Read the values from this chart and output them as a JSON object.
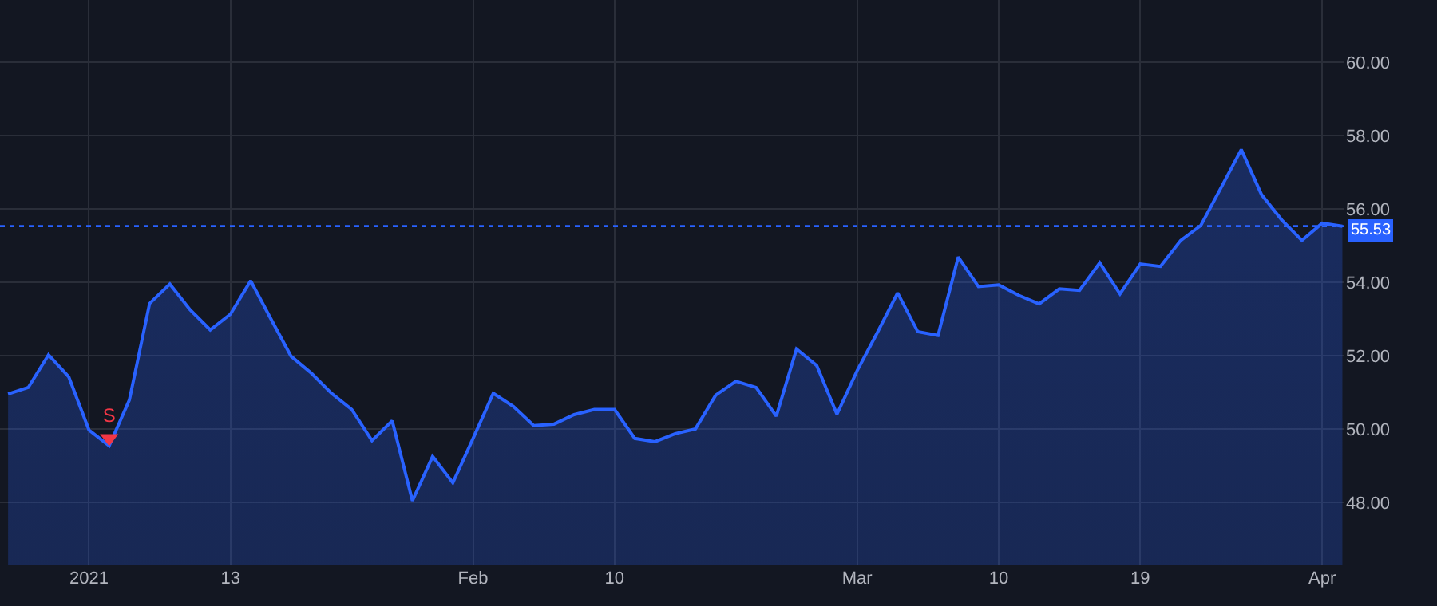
{
  "chart_data": {
    "type": "area",
    "categories": [
      null,
      null,
      null,
      null,
      "2021",
      null,
      null,
      null,
      null,
      null,
      null,
      "13",
      null,
      null,
      null,
      null,
      null,
      null,
      null,
      null,
      null,
      null,
      null,
      "Feb",
      null,
      null,
      null,
      null,
      null,
      null,
      "10",
      null,
      null,
      null,
      null,
      null,
      null,
      null,
      null,
      null,
      null,
      null,
      "Mar",
      null,
      null,
      null,
      null,
      null,
      null,
      "10",
      null,
      null,
      null,
      null,
      null,
      null,
      "19",
      null,
      null,
      null,
      null,
      null,
      null,
      null,
      null,
      "Apr",
      null
    ],
    "series": [
      {
        "color": "#2962ff",
        "values": [
          50.95,
          51.13,
          52.02,
          51.42,
          49.97,
          49.54,
          50.79,
          53.42,
          53.95,
          53.25,
          52.7,
          53.13,
          54.04,
          53.0,
          51.98,
          51.52,
          50.97,
          50.53,
          49.68,
          50.22,
          48.04,
          49.25,
          48.53,
          49.74,
          50.97,
          50.61,
          50.09,
          50.13,
          50.39,
          50.53,
          50.53,
          49.74,
          49.65,
          49.87,
          50.0,
          50.92,
          51.3,
          51.13,
          50.35,
          52.18,
          51.73,
          50.4,
          51.59,
          52.63,
          53.71,
          52.65,
          52.55,
          54.69,
          53.88,
          53.93,
          53.64,
          53.41,
          53.82,
          53.78,
          54.53,
          53.68,
          54.5,
          54.43,
          55.14,
          55.55,
          56.58,
          57.62,
          56.39,
          55.7,
          55.14,
          55.61,
          55.53
        ]
      },
      {
        "type": "scatter",
        "name": "S",
        "color": "#f23645",
        "marker": "triangle",
        "values": [
          null,
          null,
          null,
          null,
          null,
          49.75,
          null,
          null,
          null,
          null,
          null,
          null,
          null,
          null,
          null,
          null,
          null,
          null,
          null,
          null,
          null,
          null,
          null,
          null,
          null,
          null,
          null,
          null,
          null,
          null,
          null,
          null,
          null,
          null,
          null,
          null,
          null,
          null,
          null,
          null,
          null,
          null,
          null,
          null,
          null,
          null,
          null,
          null,
          null,
          null,
          null,
          null,
          null,
          null,
          null,
          null,
          null,
          null,
          null,
          null,
          null,
          null,
          null,
          null,
          null,
          null,
          null
        ]
      }
    ],
    "ylim": [
      46.3,
      61.7
    ],
    "yticks": [
      {
        "value": 48,
        "label": "48.00"
      },
      {
        "value": 50,
        "label": "50.00"
      },
      {
        "value": 52,
        "label": "52.00"
      },
      {
        "value": 54,
        "label": "54.00"
      },
      {
        "value": 56,
        "label": "56.00"
      },
      {
        "value": 58,
        "label": "58.00"
      },
      {
        "value": 60,
        "label": "60.00"
      }
    ],
    "ref_lines": [
      {
        "axis": "y",
        "value": 55.53,
        "label": "55.53",
        "color": "#2962ff",
        "line_style": "dotted"
      }
    ],
    "grid": true,
    "legend": false
  }
}
